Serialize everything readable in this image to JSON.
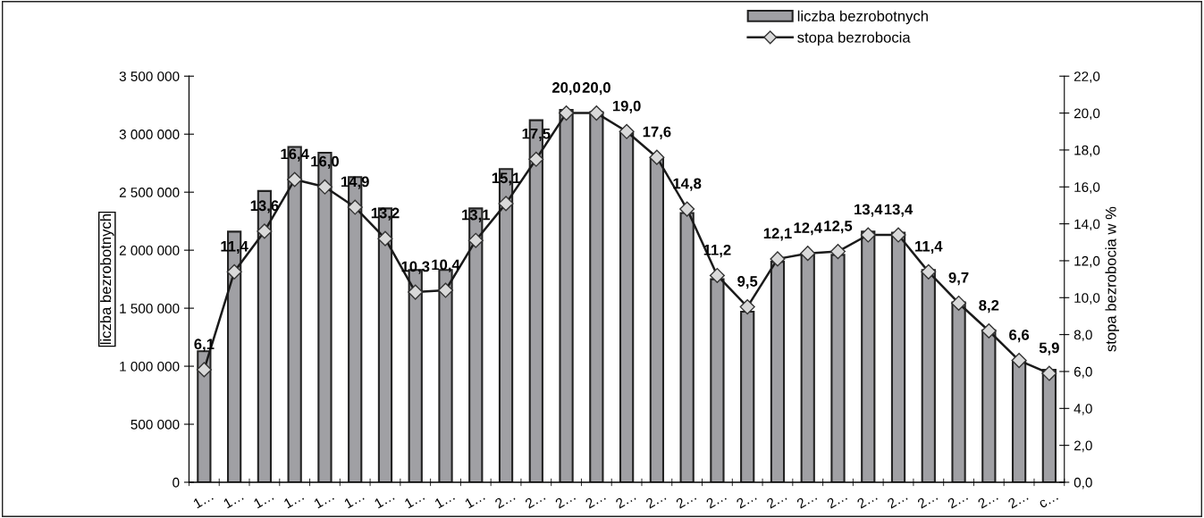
{
  "chart_data": {
    "type": "bar",
    "categories": [
      "1…",
      "1…",
      "1…",
      "1…",
      "1…",
      "1…",
      "1…",
      "1…",
      "1…",
      "1…",
      "2…",
      "2…",
      "2…",
      "2…",
      "2…",
      "2…",
      "2…",
      "2…",
      "2…",
      "2…",
      "2…",
      "2…",
      "2…",
      "2…",
      "2…",
      "2…",
      "2…",
      "2…",
      "c…"
    ],
    "ylabel": "liczba bezrobotnych",
    "y2label": "stopa bezrobocia w %",
    "series": [
      {
        "name": "liczba bezrobotnych",
        "color": "#a0a0a4",
        "values": [
          1130000,
          2160000,
          2510000,
          2890000,
          2840000,
          2630000,
          2360000,
          1830000,
          1830000,
          2360000,
          2700000,
          3120000,
          3210000,
          3190000,
          3010000,
          2790000,
          2320000,
          1750000,
          1470000,
          1900000,
          1960000,
          1960000,
          2160000,
          2150000,
          1830000,
          1550000,
          1310000,
          1040000,
          970000
        ]
      },
      {
        "name": "stopa bezrobocia",
        "type": "line",
        "axis": "y2",
        "color": "#1a1a1a",
        "marker": "diamond",
        "line_style": "solid",
        "values": [
          6.1,
          11.4,
          13.6,
          16.4,
          16.0,
          14.9,
          13.2,
          10.3,
          10.4,
          13.1,
          15.1,
          17.5,
          20.0,
          20.0,
          19.0,
          17.6,
          14.8,
          11.2,
          9.5,
          12.1,
          12.4,
          12.5,
          13.4,
          13.4,
          11.4,
          9.7,
          8.2,
          6.6,
          5.9
        ],
        "value_labels": [
          "6,1",
          "11,4",
          "13,6",
          "16,4",
          "16,0",
          "14,9",
          "13,2",
          "10,3",
          "10,4",
          "13,1",
          "15,1",
          "17,5",
          "20,0",
          "20,0",
          "19,0",
          "17,6",
          "14,8",
          "11,2",
          "9,5",
          "12,1",
          "12,4",
          "12,5",
          "13,4",
          "13,4",
          "11,4",
          "9,7",
          "8,2",
          "6,6",
          "5,9"
        ]
      }
    ],
    "ylim": [
      0,
      3500000
    ],
    "yticks": [
      {
        "value": 0,
        "label": "0"
      },
      {
        "value": 500000,
        "label": "500 000"
      },
      {
        "value": 1000000,
        "label": "1 000 000"
      },
      {
        "value": 1500000,
        "label": "1 500 000"
      },
      {
        "value": 2000000,
        "label": "2 000 000"
      },
      {
        "value": 2500000,
        "label": "2 500 000"
      },
      {
        "value": 3000000,
        "label": "3 000 000"
      },
      {
        "value": 3500000,
        "label": "3 500 000"
      }
    ],
    "y2lim": [
      0,
      22
    ],
    "y2ticks": [
      {
        "value": 0,
        "label": "0,0"
      },
      {
        "value": 2,
        "label": "2,0"
      },
      {
        "value": 4,
        "label": "4,0"
      },
      {
        "value": 6,
        "label": "6,0"
      },
      {
        "value": 8,
        "label": "8,0"
      },
      {
        "value": 10,
        "label": "10,0"
      },
      {
        "value": 12,
        "label": "12,0"
      },
      {
        "value": 14,
        "label": "14,0"
      },
      {
        "value": 16,
        "label": "16,0"
      },
      {
        "value": 18,
        "label": "18,0"
      },
      {
        "value": 20,
        "label": "20,0"
      },
      {
        "value": 22,
        "label": "22,0"
      }
    ],
    "grid": false,
    "legend": "top right"
  }
}
